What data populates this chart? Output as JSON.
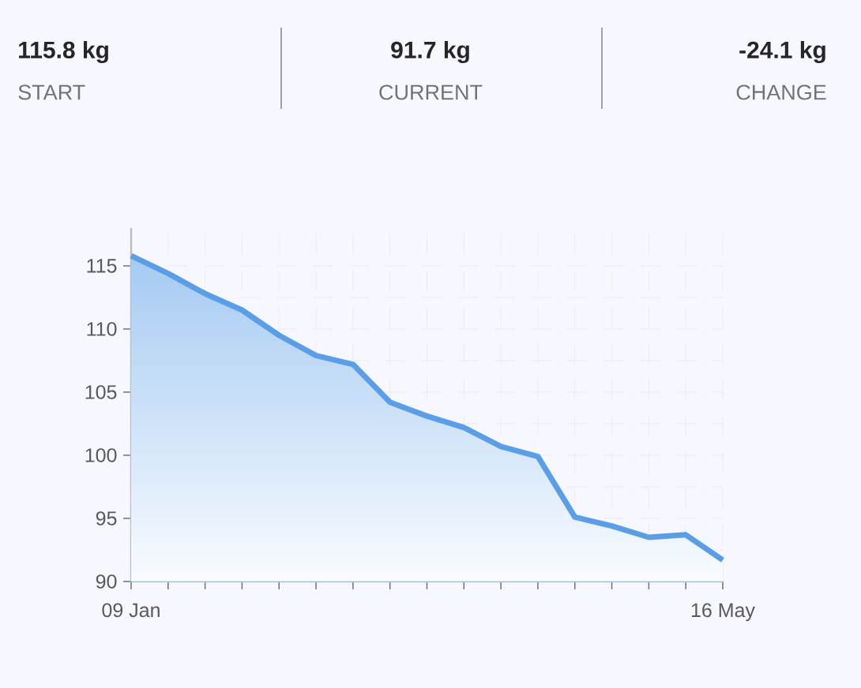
{
  "chart_data": {
    "type": "area",
    "annotations": [
      "115.8 kg",
      "START",
      "91.7 kg",
      "CURRENT",
      "-24.1 kg",
      "CHANGE"
    ],
    "categories": [
      "09 Jan",
      null,
      null,
      null,
      null,
      null,
      null,
      null,
      null,
      null,
      null,
      null,
      null,
      null,
      null,
      null,
      "16 May"
    ],
    "values": [
      115.8,
      114.4,
      112.8,
      111.5,
      109.5,
      107.9,
      107.2,
      104.2,
      103.1,
      102.2,
      100.7,
      99.9,
      95.1,
      94.4,
      93.5,
      93.7,
      91.7
    ],
    "color": "#5a9ee8",
    "ylim": [
      90,
      118
    ],
    "yticks": [
      90,
      95,
      100,
      105,
      110,
      115
    ],
    "grid": true,
    "marker": "none",
    "line_style": "solid"
  }
}
